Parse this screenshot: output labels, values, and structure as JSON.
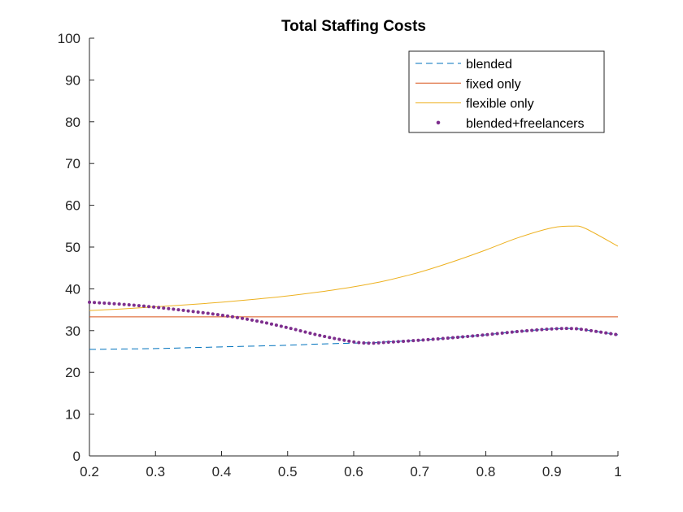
{
  "chart_data": {
    "type": "line",
    "title": "Total Staffing Costs",
    "xlabel": "",
    "ylabel": "",
    "xlim": [
      0.2,
      1
    ],
    "ylim": [
      0,
      100
    ],
    "xticks": [
      0.2,
      0.3,
      0.4,
      0.5,
      0.6,
      0.7,
      0.8,
      0.9,
      1
    ],
    "xtick_labels": [
      "0.2",
      "0.3",
      "0.4",
      "0.5",
      "0.6",
      "0.7",
      "0.8",
      "0.9",
      "1"
    ],
    "yticks": [
      0,
      10,
      20,
      30,
      40,
      50,
      60,
      70,
      80,
      90,
      100
    ],
    "ytick_labels": [
      "0",
      "10",
      "20",
      "30",
      "40",
      "50",
      "60",
      "70",
      "80",
      "90",
      "100"
    ],
    "grid": false,
    "legend_position": "top-right",
    "x": [
      0.2,
      0.25,
      0.3,
      0.35,
      0.4,
      0.45,
      0.5,
      0.55,
      0.6,
      0.625,
      0.65,
      0.7,
      0.75,
      0.8,
      0.85,
      0.9,
      0.93,
      0.95,
      1.0
    ],
    "series": [
      {
        "name": "blended",
        "style": "dashed",
        "color": "#0072BD",
        "values": [
          25.5,
          25.6,
          25.7,
          25.9,
          26.1,
          26.3,
          26.5,
          26.8,
          27.0,
          27.1,
          27.3,
          27.7,
          28.3,
          29.0,
          29.8,
          30.4,
          30.5,
          30.2,
          29.0
        ]
      },
      {
        "name": "fixed only",
        "style": "solid",
        "color": "#D95319",
        "values": [
          33.3,
          33.3,
          33.3,
          33.3,
          33.3,
          33.3,
          33.3,
          33.3,
          33.3,
          33.3,
          33.3,
          33.3,
          33.3,
          33.3,
          33.3,
          33.3,
          33.3,
          33.3,
          33.3
        ]
      },
      {
        "name": "flexible only",
        "style": "solid",
        "color": "#EDB120",
        "values": [
          34.8,
          35.2,
          35.7,
          36.2,
          36.8,
          37.5,
          38.3,
          39.3,
          40.5,
          41.2,
          42.0,
          44.0,
          46.5,
          49.3,
          52.3,
          54.6,
          55.0,
          54.5,
          50.2
        ]
      },
      {
        "name": "blended+freelancers",
        "style": "dotted",
        "color": "#7E2F8E",
        "values": [
          36.8,
          36.3,
          35.6,
          34.7,
          33.7,
          32.4,
          30.7,
          28.8,
          27.3,
          27.0,
          27.2,
          27.7,
          28.3,
          29.0,
          29.8,
          30.4,
          30.5,
          30.2,
          29.0
        ]
      }
    ]
  }
}
